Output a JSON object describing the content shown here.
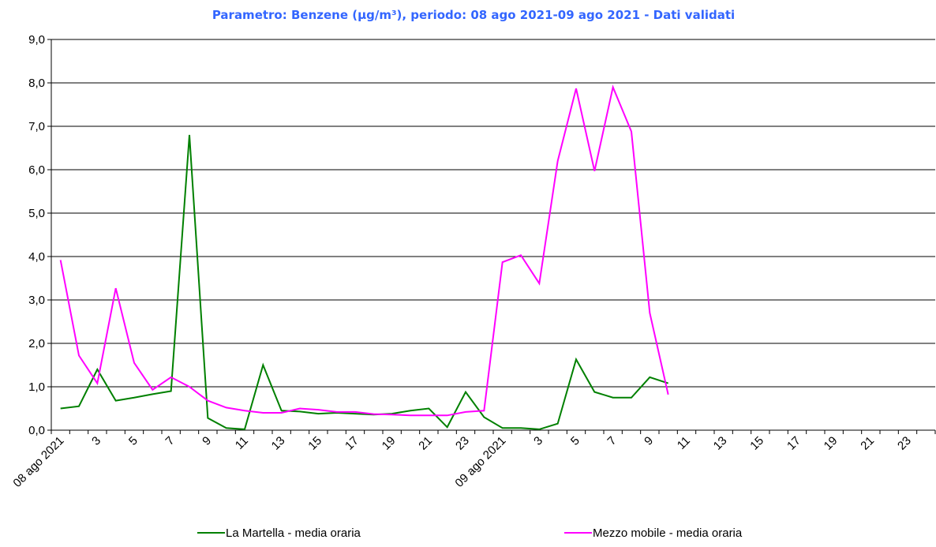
{
  "chart_data": {
    "type": "line",
    "title": "Parametro: Benzene (µg/m³), periodo: 08 ago 2021-09 ago 2021 - Dati validati",
    "categories": [
      "08 ago 2021",
      null,
      "3",
      null,
      "5",
      null,
      "7",
      null,
      "9",
      null,
      "11",
      null,
      "13",
      null,
      "15",
      null,
      "17",
      null,
      "19",
      null,
      "21",
      null,
      "23",
      null,
      "09 ago 2021",
      null,
      "3",
      null,
      "5",
      null,
      "7",
      null,
      "9",
      null,
      "11",
      null,
      "13",
      null,
      "15",
      null,
      "17",
      null,
      "19",
      null,
      "21",
      null,
      "23",
      null
    ],
    "series": [
      {
        "name": "La Martella - media oraria",
        "color": "#008000",
        "values": [
          0.5,
          0.55,
          1.4,
          0.68,
          0.75,
          0.83,
          0.9,
          6.8,
          0.28,
          0.05,
          0.02,
          1.5,
          0.45,
          0.43,
          0.38,
          0.4,
          0.38,
          0.36,
          0.38,
          0.45,
          0.5,
          0.07,
          0.88,
          0.3,
          0.05,
          0.05,
          0.02,
          0.15,
          1.63,
          0.88,
          0.75,
          0.75,
          1.22,
          1.08,
          null,
          null,
          null,
          null,
          null,
          null,
          null,
          null,
          null,
          null,
          null,
          null,
          null,
          null
        ]
      },
      {
        "name": "Mezzo mobile - media oraria",
        "color": "#ff00ff",
        "values": [
          3.92,
          1.72,
          1.08,
          3.27,
          1.55,
          0.93,
          1.22,
          1.0,
          0.68,
          0.52,
          0.45,
          0.4,
          0.4,
          0.5,
          0.47,
          0.42,
          0.42,
          0.37,
          0.36,
          0.34,
          0.34,
          0.34,
          0.42,
          0.45,
          3.87,
          4.03,
          3.38,
          6.2,
          7.87,
          5.97,
          7.9,
          6.88,
          2.7,
          0.82,
          null,
          null,
          null,
          null,
          null,
          null,
          null,
          null,
          null,
          null,
          null,
          null,
          null,
          null
        ]
      }
    ],
    "ylim": [
      0,
      9
    ],
    "yticks": [
      {
        "value": 0,
        "label": "0,0"
      },
      {
        "value": 1,
        "label": "1,0"
      },
      {
        "value": 2,
        "label": "2,0"
      },
      {
        "value": 3,
        "label": "3,0"
      },
      {
        "value": 4,
        "label": "4,0"
      },
      {
        "value": 5,
        "label": "5,0"
      },
      {
        "value": 6,
        "label": "6,0"
      },
      {
        "value": 7,
        "label": "7,0"
      },
      {
        "value": 8,
        "label": "8,0"
      },
      {
        "value": 9,
        "label": "9,0"
      }
    ],
    "grid": true,
    "legend": "bottom"
  }
}
